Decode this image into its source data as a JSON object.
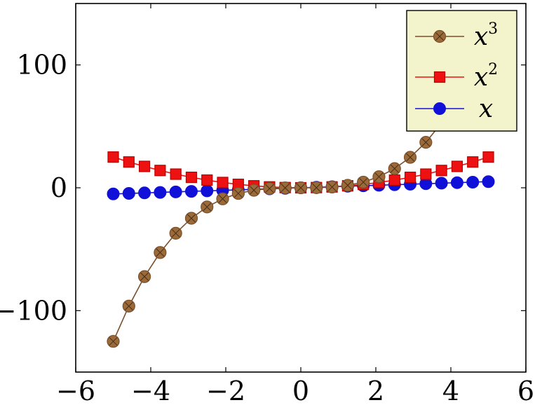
{
  "chart_data": {
    "type": "line",
    "x": [
      -5,
      -4.5833,
      -4.1667,
      -3.75,
      -3.3333,
      -2.9167,
      -2.5,
      -2.0833,
      -1.6667,
      -1.25,
      -0.8333,
      -0.4167,
      0,
      0.4167,
      0.8333,
      1.25,
      1.6667,
      2.0833,
      2.5,
      2.9167,
      3.3333,
      3.75,
      4.1667,
      4.5833,
      5
    ],
    "series": [
      {
        "name": "x^3",
        "label_base": "x",
        "label_sup": "3",
        "color": "#7a4f2a",
        "marker": "circle-x",
        "values": [
          -125,
          -96.3,
          -72.3,
          -52.7,
          -37.0,
          -24.8,
          -15.6,
          -9.0,
          -4.6,
          -2.0,
          -0.6,
          -0.07,
          0,
          0.07,
          0.6,
          2.0,
          4.6,
          9.0,
          15.6,
          24.8,
          37.0,
          52.7,
          72.3,
          96.3,
          125
        ]
      },
      {
        "name": "x^2",
        "label_base": "x",
        "label_sup": "2",
        "color": "#ee1111",
        "marker": "square",
        "values": [
          25,
          21.0,
          17.4,
          14.1,
          11.1,
          8.5,
          6.25,
          4.3,
          2.8,
          1.6,
          0.7,
          0.17,
          0,
          0.17,
          0.7,
          1.6,
          2.8,
          4.3,
          6.25,
          8.5,
          11.1,
          14.1,
          17.4,
          21.0,
          25
        ]
      },
      {
        "name": "x",
        "label_base": "x",
        "label_sup": "",
        "color": "#1010d8",
        "marker": "circle",
        "values": [
          -5,
          -4.5833,
          -4.1667,
          -3.75,
          -3.3333,
          -2.9167,
          -2.5,
          -2.0833,
          -1.6667,
          -1.25,
          -0.8333,
          -0.4167,
          0,
          0.4167,
          0.8333,
          1.25,
          1.6667,
          2.0833,
          2.5,
          2.9167,
          3.3333,
          3.75,
          4.1667,
          4.5833,
          5
        ]
      }
    ],
    "xlim": [
      -6,
      6
    ],
    "ylim": [
      -150,
      150
    ],
    "x_ticks": [
      -6,
      -4,
      -2,
      0,
      2,
      4,
      6
    ],
    "x_tick_labels": [
      "−6",
      "−4",
      "−2",
      "0",
      "2",
      "4",
      "6"
    ],
    "y_ticks": [
      -100,
      0,
      100
    ],
    "y_tick_labels": [
      "−100",
      "0",
      "100"
    ],
    "title": "",
    "xlabel": "",
    "ylabel": "",
    "grid": false,
    "legend_position": "top-right",
    "legend_bg": "#f4f4cc"
  }
}
